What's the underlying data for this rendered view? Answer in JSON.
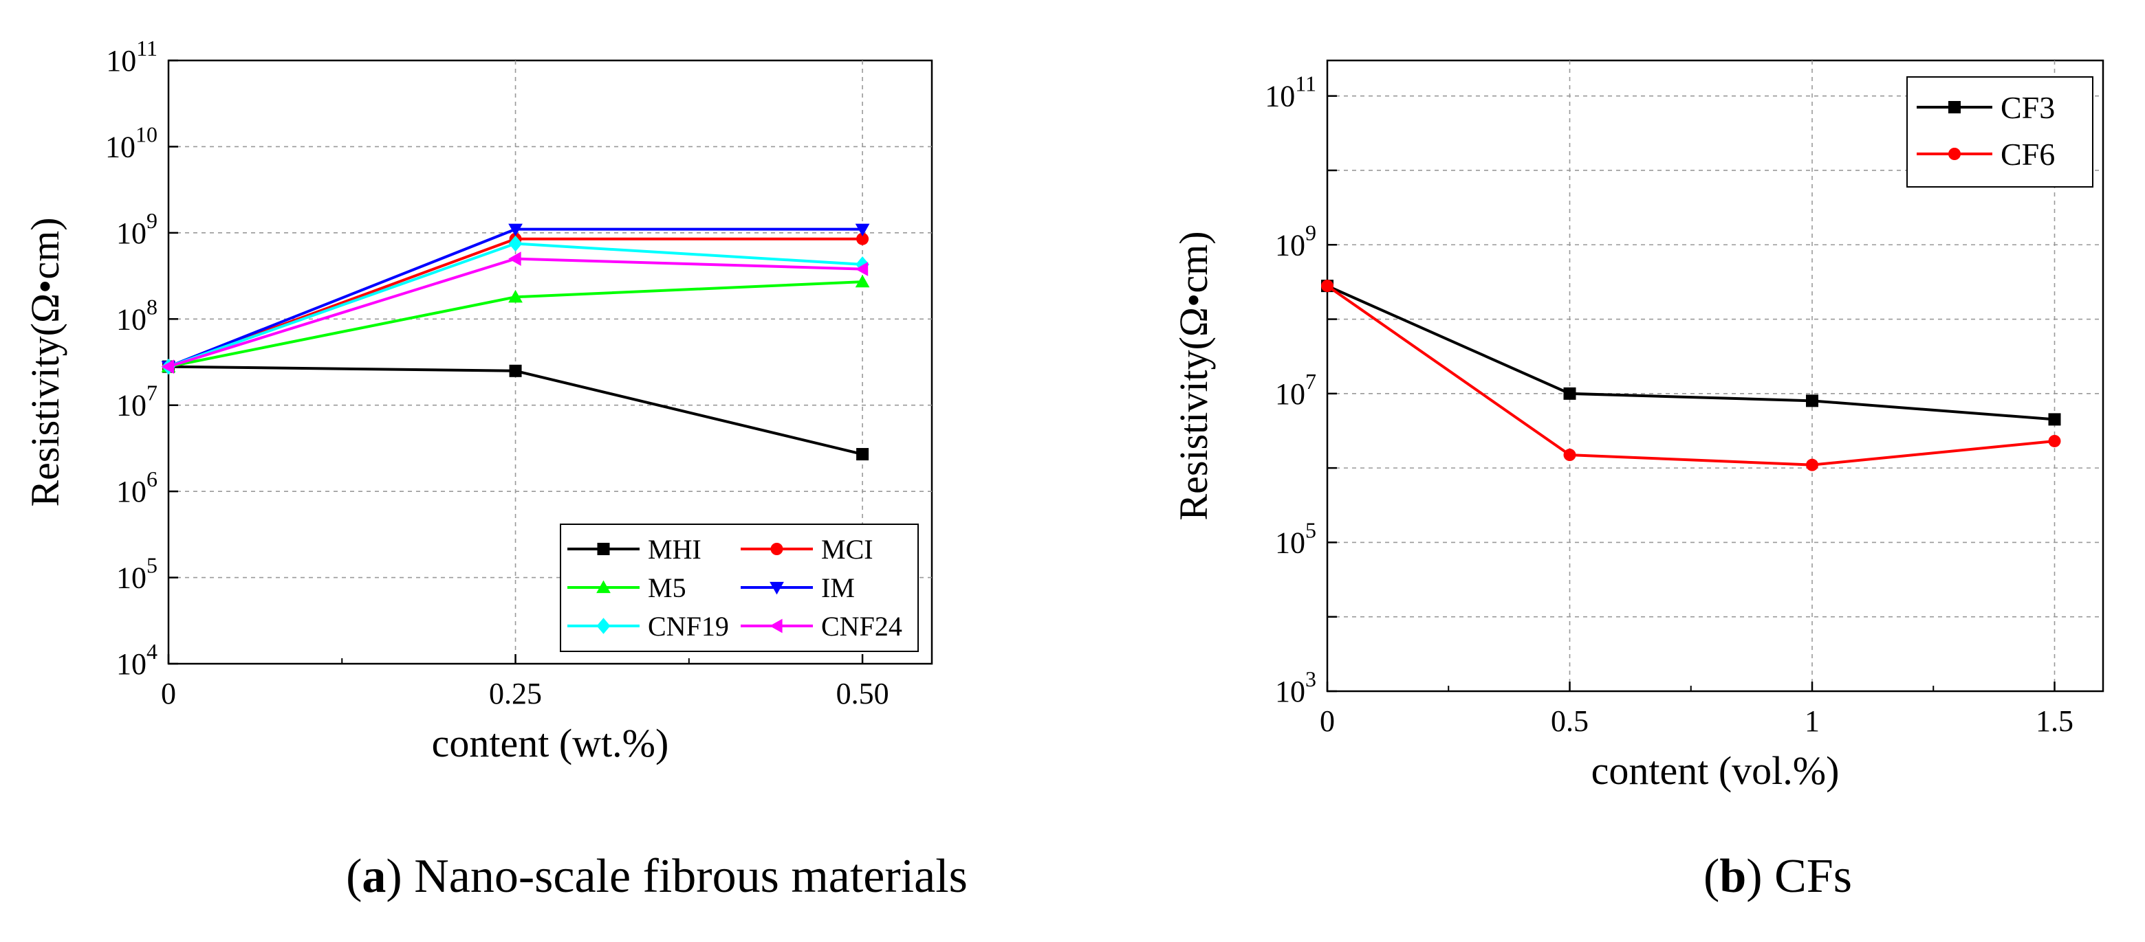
{
  "chart_data": [
    {
      "type": "line",
      "caption": {
        "letter": "a",
        "text": "Nano-scale fibrous materials"
      },
      "xlabel": "content (wt.%)",
      "ylabel": "Resistivity(Ω•cm)",
      "x_ticks": [
        "0",
        "0.25",
        "0.50"
      ],
      "x": [
        0,
        0.25,
        0.5
      ],
      "xlim": [
        0,
        0.55
      ],
      "y_scale": "log",
      "ylim": [
        10000,
        100000000000
      ],
      "y_ticks": [
        {
          "base": "10",
          "exp": "4"
        },
        {
          "base": "10",
          "exp": "5"
        },
        {
          "base": "10",
          "exp": "6"
        },
        {
          "base": "10",
          "exp": "7"
        },
        {
          "base": "10",
          "exp": "8"
        },
        {
          "base": "10",
          "exp": "9"
        },
        {
          "base": "10",
          "exp": "10"
        },
        {
          "base": "10",
          "exp": "11"
        }
      ],
      "grid": true,
      "legend_position": "bottom-right",
      "series": [
        {
          "name": "MHI",
          "color": "#000000",
          "marker": "square",
          "values": [
            28000000,
            25000000,
            2700000
          ]
        },
        {
          "name": "MCI",
          "color": "#ff0000",
          "marker": "circle",
          "values": [
            28000000,
            850000000,
            850000000
          ]
        },
        {
          "name": "M5",
          "color": "#00ff00",
          "marker": "triangle-up",
          "values": [
            28000000,
            180000000,
            270000000
          ]
        },
        {
          "name": "IM",
          "color": "#0000ff",
          "marker": "triangle-down",
          "values": [
            28000000,
            1100000000,
            1100000000
          ]
        },
        {
          "name": "CNF19",
          "color": "#00ffff",
          "marker": "diamond",
          "values": [
            28000000,
            750000000,
            430000000
          ]
        },
        {
          "name": "CNF24",
          "color": "#ff00ff",
          "marker": "triangle-left",
          "values": [
            28000000,
            500000000,
            380000000
          ]
        }
      ]
    },
    {
      "type": "line",
      "caption": {
        "letter": "b",
        "text": "CFs"
      },
      "xlabel": "content (vol.%)",
      "ylabel": "Resistivity(Ω•cm)",
      "x_ticks": [
        "0",
        "0.5",
        "1",
        "1.5"
      ],
      "x": [
        0,
        0.5,
        1,
        1.5
      ],
      "xlim": [
        0,
        1.6
      ],
      "y_scale": "log",
      "ylim": [
        1000,
        300000000000
      ],
      "y_ticks": [
        {
          "base": "10",
          "exp": "3"
        },
        {
          "base": "10",
          "exp": "5"
        },
        {
          "base": "10",
          "exp": "7"
        },
        {
          "base": "10",
          "exp": "9"
        },
        {
          "base": "10",
          "exp": "11"
        }
      ],
      "grid": true,
      "legend_position": "top-right",
      "series": [
        {
          "name": "CF3",
          "color": "#000000",
          "marker": "square",
          "values": [
            280000000,
            10000000,
            8000000,
            4500000
          ]
        },
        {
          "name": "CF6",
          "color": "#ff0000",
          "marker": "circle",
          "values": [
            280000000,
            1500000,
            1100000,
            2300000
          ]
        }
      ]
    }
  ]
}
